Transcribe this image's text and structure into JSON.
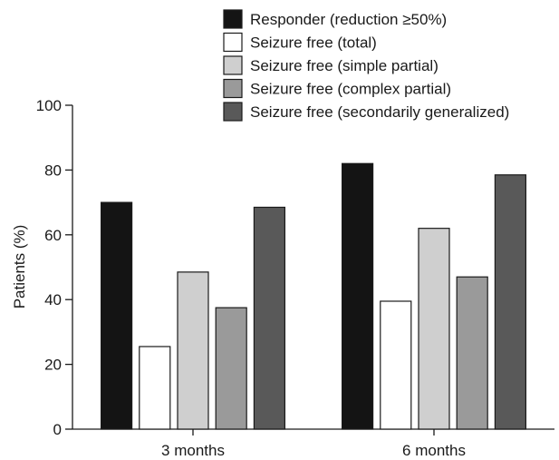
{
  "chart_data": {
    "type": "bar",
    "title": "",
    "xlabel": "",
    "ylabel": "Patients (%)",
    "ylim": [
      0,
      100
    ],
    "yticks": [
      0,
      20,
      40,
      60,
      80,
      100
    ],
    "grid": false,
    "legend_position": "top-right",
    "categories": [
      "3 months",
      "6 months"
    ],
    "series": [
      {
        "name": "Responder (reduction ≥50%)",
        "color": "#141414",
        "values": [
          70,
          82
        ]
      },
      {
        "name": "Seizure free (total)",
        "color": "#ffffff",
        "values": [
          25.5,
          39.5
        ]
      },
      {
        "name": "Seizure free (simple partial)",
        "color": "#cfcfcf",
        "values": [
          48.5,
          62
        ]
      },
      {
        "name": "Seizure free (complex partial)",
        "color": "#9a9a9a",
        "values": [
          37.5,
          47
        ]
      },
      {
        "name": "Seizure free (secondarily generalized)",
        "color": "#595959",
        "values": [
          68.5,
          78.5
        ]
      }
    ]
  }
}
